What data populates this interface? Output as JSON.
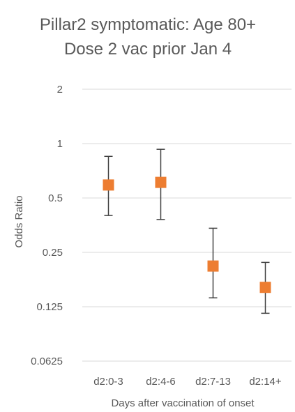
{
  "chart_data": {
    "type": "scatter",
    "title": "Pillar2 symptomatic: Age 80+",
    "subtitle": "Dose 2 vac prior Jan 4",
    "xlabel": "Days after vaccination of onset",
    "ylabel": "Odds Ratio",
    "y_scale": "log2",
    "ylim": [
      0.0625,
      2
    ],
    "y_ticks": [
      2,
      1,
      0.5,
      0.25,
      0.125,
      0.0625
    ],
    "y_tick_labels": [
      "2",
      "1",
      "0.5",
      "0.25",
      "0.125",
      "0.0625"
    ],
    "grid": "horizontal",
    "marker_color": "#ED7D31",
    "errorbar_color": "#404040",
    "categories": [
      "d2:0-3",
      "d2:4-6",
      "d2:7-13",
      "d2:14+"
    ],
    "values": [
      0.59,
      0.61,
      0.21,
      0.16
    ],
    "lower": [
      0.4,
      0.38,
      0.14,
      0.115
    ],
    "upper": [
      0.85,
      0.93,
      0.34,
      0.22
    ]
  }
}
